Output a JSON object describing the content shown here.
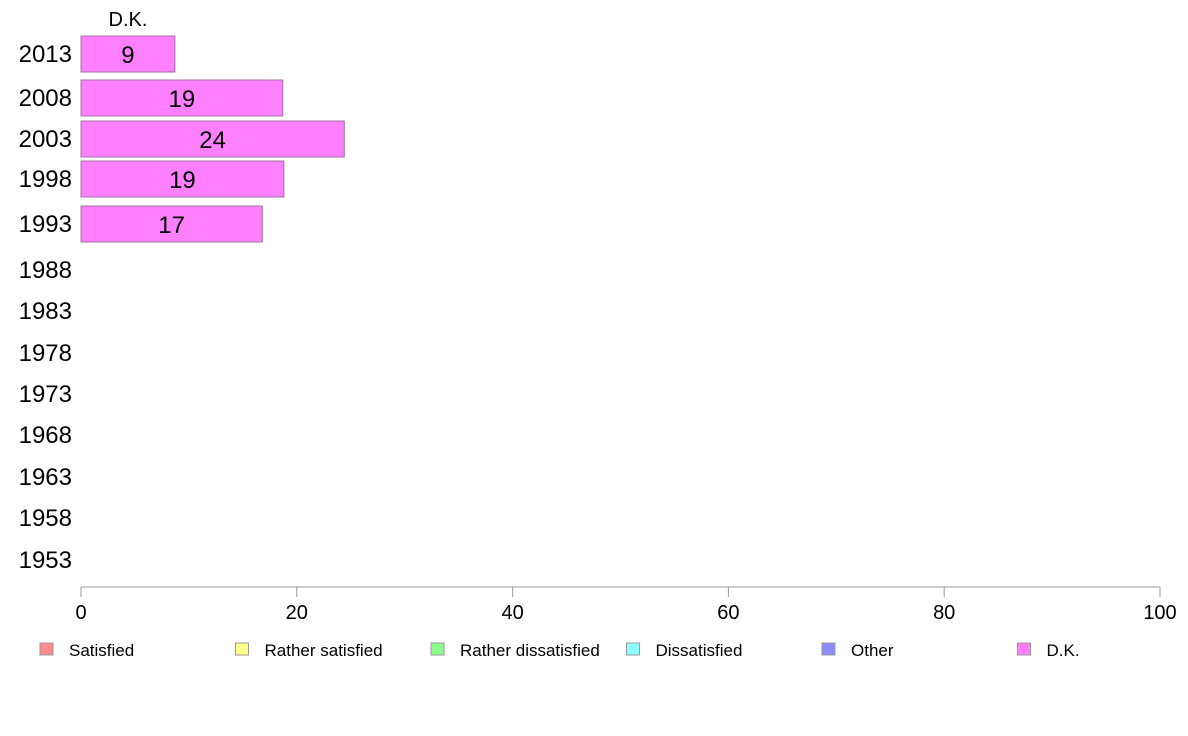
{
  "chart_data": {
    "type": "bar",
    "orientation": "horizontal",
    "stacked": true,
    "series_title": "D.K.",
    "categories": [
      "2013",
      "2008",
      "2003",
      "1998",
      "1993",
      "1988",
      "1983",
      "1978",
      "1973",
      "1968",
      "1963",
      "1958",
      "1953"
    ],
    "series": [
      {
        "name": "Satisfied",
        "color": "#ff8c8c",
        "values": [
          null,
          null,
          null,
          null,
          null,
          null,
          null,
          null,
          null,
          null,
          null,
          null,
          null
        ]
      },
      {
        "name": "Rather satisfied",
        "color": "#ffff8c",
        "values": [
          null,
          null,
          null,
          null,
          null,
          null,
          null,
          null,
          null,
          null,
          null,
          null,
          null
        ]
      },
      {
        "name": "Rather dissatisfied",
        "color": "#8cff8c",
        "values": [
          null,
          null,
          null,
          null,
          null,
          null,
          null,
          null,
          null,
          null,
          null,
          null,
          null
        ]
      },
      {
        "name": "Dissatisfied",
        "color": "#8cffff",
        "values": [
          null,
          null,
          null,
          null,
          null,
          null,
          null,
          null,
          null,
          null,
          null,
          null,
          null
        ]
      },
      {
        "name": "Other",
        "color": "#8c8cff",
        "values": [
          null,
          null,
          null,
          null,
          null,
          null,
          null,
          null,
          null,
          null,
          null,
          null,
          null
        ]
      },
      {
        "name": "D.K.",
        "color": "#ff80ff",
        "values": [
          8.7,
          18.7,
          24.4,
          18.8,
          16.8,
          null,
          null,
          null,
          null,
          null,
          null,
          null,
          null
        ]
      }
    ],
    "data_labels": [
      "9",
      "19",
      "24",
      "19",
      "17",
      "",
      "",
      "",
      "",
      "",
      "",
      "",
      ""
    ],
    "xlim": [
      0,
      100
    ],
    "xticks": [
      "0",
      "20",
      "40",
      "60",
      "80",
      "100"
    ],
    "grid": false,
    "legend_position": "bottom",
    "bar_stroke": "#a070a0",
    "axis_color": "#999999"
  }
}
